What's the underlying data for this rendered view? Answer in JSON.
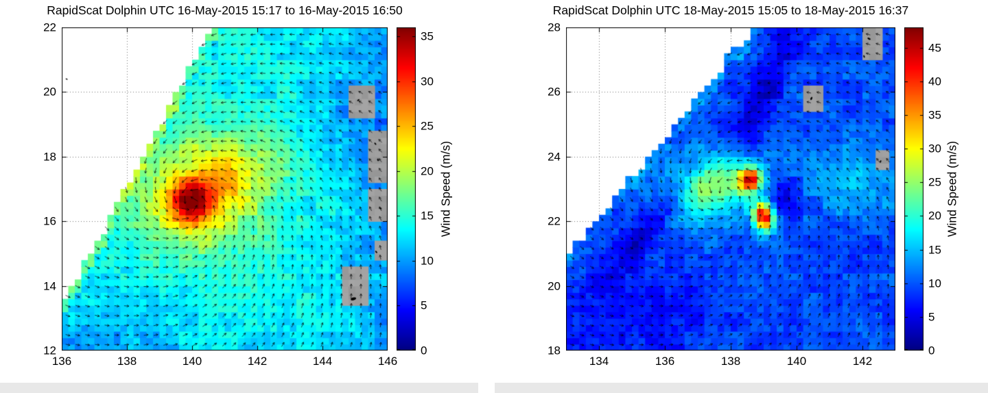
{
  "figure": {
    "background": "#ffffff",
    "footer_strip_color": "#e8e8e8",
    "colormap": "jet"
  },
  "chart_data": [
    {
      "id": "left",
      "type": "heatmap",
      "title": "RapidScat Dolphin UTC 16-May-2015 15:17 to 16-May-2015 16:50",
      "xlabel": "",
      "ylabel": "",
      "xlim": [
        136,
        146
      ],
      "ylim": [
        12,
        22
      ],
      "xticks": [
        136,
        138,
        140,
        142,
        144,
        146
      ],
      "yticks": [
        12,
        14,
        16,
        18,
        20,
        22
      ],
      "grid": "dotted",
      "colormap": "jet",
      "colorbar": {
        "label": "Wind Speed (m/s)",
        "ticks": [
          0,
          5,
          10,
          15,
          20,
          25,
          30,
          35
        ],
        "vmin": 0,
        "vmax": 36
      },
      "storm": {
        "name": "Dolphin",
        "center": [
          139.95,
          16.6
        ],
        "peak_wind_ms": 35,
        "rotation": "counterclockwise"
      },
      "field_model": {
        "cell_deg": 0.2,
        "background_ms": 13.5,
        "noise_amp": 2.4,
        "blobs": [
          {
            "x": 139.95,
            "y": 16.6,
            "amp": 14,
            "sx": 0.5,
            "sy": 0.45,
            "rot": 0
          },
          {
            "x": 140.3,
            "y": 16.9,
            "amp": 9,
            "sx": 1.5,
            "sy": 1.25,
            "rot": 20
          },
          {
            "x": 141.3,
            "y": 17.5,
            "amp": 3.5,
            "sx": 1.2,
            "sy": 0.8,
            "rot": 35
          },
          {
            "x": 144.9,
            "y": 19.2,
            "amp": -2.5,
            "sx": 1.1,
            "sy": 1.4,
            "rot": 0
          },
          {
            "x": 137.2,
            "y": 12.5,
            "amp": -2.5,
            "sx": 1.6,
            "sy": 0.9,
            "rot": 0
          }
        ],
        "ramps": [
          {
            "a": 1,
            "b": 0,
            "c": 144.0,
            "rate": -1.6
          },
          {
            "a": 0,
            "b": -1,
            "c": -13.0,
            "rate": -1.2
          }
        ],
        "swath_edge": {
          "p1": [
            136.0,
            13.3
          ],
          "p2": [
            140.6,
            22.0
          ],
          "edge_band_deg": 0.45,
          "edge_boost": 4.5
        }
      },
      "land_gray": [
        [
          144.85,
          145.5,
          19.25,
          20.2
        ],
        [
          145.3,
          146.0,
          17.25,
          18.8
        ],
        [
          145.45,
          146.0,
          16.0,
          17.05
        ],
        [
          145.5,
          145.9,
          14.85,
          15.3
        ],
        [
          144.7,
          145.35,
          13.3,
          14.6
        ]
      ],
      "islands": [
        [
          145.1,
          19.75,
          2
        ],
        [
          145.62,
          18.4,
          2
        ],
        [
          145.7,
          17.9,
          2
        ],
        [
          145.78,
          16.4,
          2
        ],
        [
          145.65,
          15.05,
          2
        ],
        [
          144.95,
          13.6,
          4
        ],
        [
          136.15,
          20.4,
          1.6
        ]
      ],
      "arrows": {
        "spacing_deg": 0.3,
        "inflow_deg": 27
      }
    },
    {
      "id": "right",
      "type": "heatmap",
      "title": "RapidScat Dolphin UTC 18-May-2015 15:05 to 18-May-2015 16:37",
      "xlabel": "",
      "ylabel": "",
      "xlim": [
        133,
        143
      ],
      "ylim": [
        18,
        28
      ],
      "xticks": [
        134,
        136,
        138,
        140,
        142
      ],
      "yticks": [
        18,
        20,
        22,
        24,
        26,
        28
      ],
      "grid": "dotted",
      "colormap": "jet",
      "colorbar": {
        "label": "Wind Speed (m/s)",
        "ticks": [
          0,
          5,
          10,
          15,
          20,
          25,
          30,
          35,
          40,
          45
        ],
        "vmin": 0,
        "vmax": 48
      },
      "storm": {
        "name": "Dolphin",
        "center": [
          137.8,
          22.9
        ],
        "peak_wind_ms": 47,
        "rotation": "counterclockwise"
      },
      "field_model": {
        "cell_deg": 0.2,
        "background_ms": 9.5,
        "noise_amp": 2.8,
        "blobs": [
          {
            "x": 137.5,
            "y": 23.1,
            "amp": 16,
            "sx": 1.0,
            "sy": 0.7,
            "rot": 15
          },
          {
            "x": 138.6,
            "y": 23.3,
            "amp": 30,
            "sx": 0.22,
            "sy": 0.25,
            "rot": 0
          },
          {
            "x": 139.0,
            "y": 22.15,
            "amp": 34,
            "sx": 0.22,
            "sy": 0.3,
            "rot": 0
          },
          {
            "x": 135.6,
            "y": 22.0,
            "amp": -5.5,
            "sx": 1.6,
            "sy": 0.3,
            "rot": 52
          },
          {
            "x": 139.0,
            "y": 26.0,
            "amp": -5.5,
            "sx": 1.8,
            "sy": 0.35,
            "rot": 67
          },
          {
            "x": 139.6,
            "y": 22.9,
            "amp": -6,
            "sx": 0.4,
            "sy": 0.5,
            "rot": 0
          },
          {
            "x": 135.0,
            "y": 19.0,
            "amp": -3,
            "sx": 2.0,
            "sy": 1.2,
            "rot": 0
          },
          {
            "x": 141.8,
            "y": 23.3,
            "amp": 5,
            "sx": 1.4,
            "sy": 0.8,
            "rot": 0
          }
        ],
        "ramps": [],
        "swath_edge": {
          "p1": [
            133.0,
            20.8
          ],
          "p2": [
            138.7,
            28.0
          ],
          "edge_band_deg": 0.4,
          "edge_boost": 3.5
        }
      },
      "land_gray": [
        [
          140.2,
          140.75,
          25.45,
          26.2
        ],
        [
          141.95,
          142.7,
          27.0,
          28.0
        ],
        [
          142.3,
          142.85,
          23.55,
          24.2
        ]
      ],
      "islands": [
        [
          140.45,
          25.8,
          2.5
        ],
        [
          142.2,
          27.65,
          2.5
        ],
        [
          142.05,
          27.1,
          2
        ],
        [
          142.55,
          23.85,
          2
        ]
      ],
      "arrows": {
        "spacing_deg": 0.3,
        "inflow_deg": 27
      }
    }
  ]
}
